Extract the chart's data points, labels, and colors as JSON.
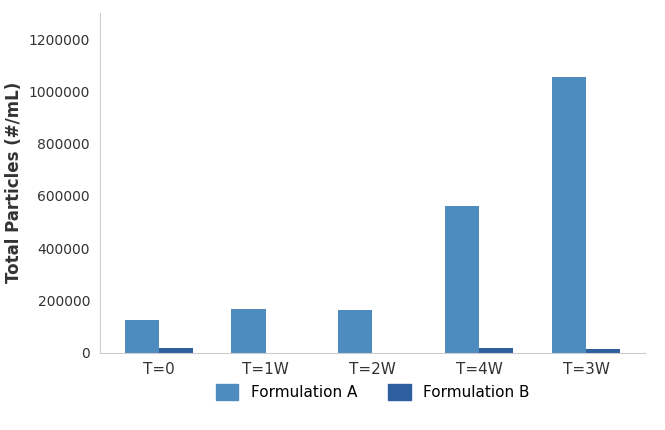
{
  "categories": [
    "T=0",
    "T=1W",
    "T=2W",
    "T=4W",
    "T=3W"
  ],
  "formulation_a": [
    125000,
    165000,
    163000,
    560000,
    1055000
  ],
  "formulation_b": [
    18000,
    0,
    0,
    18000,
    15000
  ],
  "color_a": "#4e8bbf",
  "color_b": "#2d5f9e",
  "ylabel": "Total Particles (#/mL)",
  "ylim": [
    0,
    1300000
  ],
  "yticks": [
    0,
    200000,
    400000,
    600000,
    800000,
    1000000,
    1200000
  ],
  "legend_a": "Formulation A",
  "legend_b": "Formulation B",
  "bar_width": 0.32,
  "background_color": "#ffffff"
}
